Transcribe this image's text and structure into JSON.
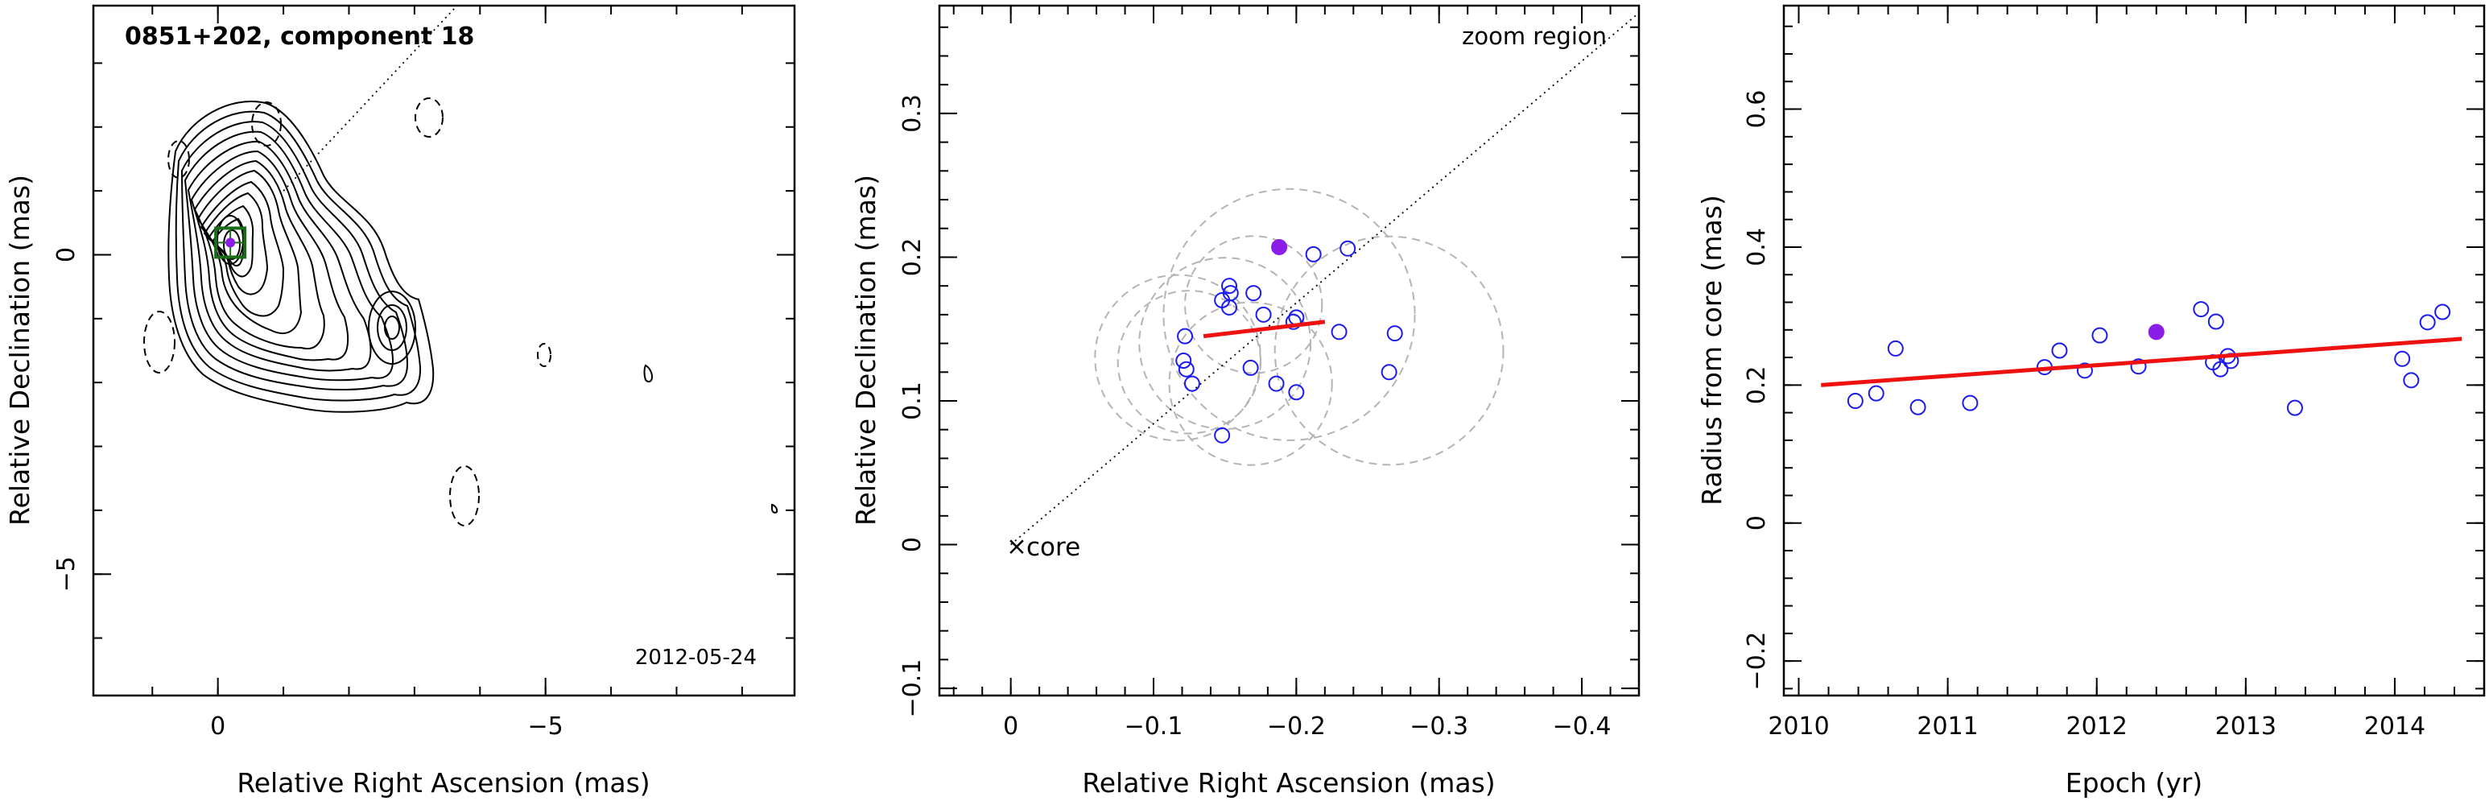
{
  "chart_data": [
    {
      "type": "contour",
      "panel": "map",
      "title": "0851+202, component 18",
      "date_label": "2012-05-24",
      "xlabel": "Relative Right Ascension (mas)",
      "ylabel": "Relative Declination (mas)",
      "xlim": [
        1.9,
        -8.8
      ],
      "ylim": [
        -6.9,
        3.9
      ],
      "xticks": [
        0,
        -5
      ],
      "yticks": [
        -5,
        0
      ],
      "xtick_labels": [
        "0",
        "−5"
      ],
      "ytick_labels": [
        "−5",
        "0"
      ],
      "core_position": [
        0,
        0
      ],
      "component_position": [
        -0.19,
        0.19
      ],
      "colors": {
        "contour": "#000000",
        "box": "#1a6b1a",
        "component": "#8a1ee8",
        "fit": "#ef1010"
      }
    },
    {
      "type": "scatter",
      "panel": "zoom",
      "annotation": "zoom region",
      "core_label": "core",
      "xlabel": "Relative Right Ascension (mas)",
      "ylabel": "Relative Declination (mas)",
      "xlim": [
        0.05,
        -0.44
      ],
      "ylim": [
        -0.105,
        0.375
      ],
      "xticks": [
        0,
        -0.1,
        -0.2,
        -0.3,
        -0.4
      ],
      "yticks": [
        -0.1,
        0,
        0.1,
        0.2,
        0.3
      ],
      "xtick_labels": [
        "0",
        "−0.1",
        "−0.2",
        "−0.3",
        "−0.4"
      ],
      "ytick_labels": [
        "−0.1",
        "0",
        "0.1",
        "0.2",
        "0.3"
      ],
      "points": [
        {
          "x": -0.122,
          "y": 0.145
        },
        {
          "x": -0.121,
          "y": 0.128
        },
        {
          "x": -0.123,
          "y": 0.122
        },
        {
          "x": -0.127,
          "y": 0.112
        },
        {
          "x": -0.148,
          "y": 0.17
        },
        {
          "x": -0.153,
          "y": 0.18
        },
        {
          "x": -0.154,
          "y": 0.175
        },
        {
          "x": -0.153,
          "y": 0.165
        },
        {
          "x": -0.17,
          "y": 0.175
        },
        {
          "x": -0.177,
          "y": 0.16
        },
        {
          "x": -0.168,
          "y": 0.123
        },
        {
          "x": -0.186,
          "y": 0.112
        },
        {
          "x": -0.2,
          "y": 0.158
        },
        {
          "x": -0.198,
          "y": 0.155
        },
        {
          "x": -0.2,
          "y": 0.106
        },
        {
          "x": -0.212,
          "y": 0.202
        },
        {
          "x": -0.23,
          "y": 0.148
        },
        {
          "x": -0.236,
          "y": 0.206
        },
        {
          "x": -0.265,
          "y": 0.12
        },
        {
          "x": -0.269,
          "y": 0.147
        },
        {
          "x": -0.148,
          "y": 0.076
        }
      ],
      "highlight": {
        "x": -0.188,
        "y": 0.207
      },
      "uncertainty_circles": [
        {
          "x": -0.117,
          "y": 0.13,
          "r": 0.058
        },
        {
          "x": -0.125,
          "y": 0.127,
          "r": 0.05
        },
        {
          "x": -0.15,
          "y": 0.14,
          "r": 0.06
        },
        {
          "x": -0.168,
          "y": 0.112,
          "r": 0.057
        },
        {
          "x": -0.17,
          "y": 0.167,
          "r": 0.048
        },
        {
          "x": -0.195,
          "y": 0.16,
          "r": 0.088
        },
        {
          "x": -0.265,
          "y": 0.135,
          "r": 0.08
        }
      ],
      "fit": {
        "x": [
          -0.135,
          -0.22
        ],
        "y": [
          0.145,
          0.155
        ]
      },
      "guide_line": {
        "x": [
          0,
          -0.44
        ],
        "y": [
          0,
          0.37
        ]
      }
    },
    {
      "type": "scatter",
      "panel": "radius",
      "xlabel": "Epoch (yr)",
      "ylabel": "Radius from core (mas)",
      "xlim": [
        2009.9,
        2014.6
      ],
      "ylim": [
        -0.25,
        0.75
      ],
      "xticks": [
        2010,
        2011,
        2012,
        2013,
        2014
      ],
      "yticks": [
        -0.2,
        0,
        0.2,
        0.4,
        0.6
      ],
      "xtick_labels": [
        "2010",
        "2011",
        "2012",
        "2013",
        "2014"
      ],
      "ytick_labels": [
        "−0.2",
        "0",
        "0.2",
        "0.4",
        "0.6"
      ],
      "points": [
        {
          "x": 2010.38,
          "y": 0.177
        },
        {
          "x": 2010.52,
          "y": 0.188
        },
        {
          "x": 2010.65,
          "y": 0.253
        },
        {
          "x": 2010.8,
          "y": 0.168
        },
        {
          "x": 2011.15,
          "y": 0.174
        },
        {
          "x": 2011.65,
          "y": 0.226
        },
        {
          "x": 2011.75,
          "y": 0.25
        },
        {
          "x": 2011.92,
          "y": 0.221
        },
        {
          "x": 2012.02,
          "y": 0.272
        },
        {
          "x": 2012.28,
          "y": 0.227
        },
        {
          "x": 2012.7,
          "y": 0.31
        },
        {
          "x": 2012.78,
          "y": 0.233
        },
        {
          "x": 2012.8,
          "y": 0.292
        },
        {
          "x": 2012.83,
          "y": 0.223
        },
        {
          "x": 2012.88,
          "y": 0.242
        },
        {
          "x": 2012.9,
          "y": 0.235
        },
        {
          "x": 2013.33,
          "y": 0.167
        },
        {
          "x": 2014.05,
          "y": 0.238
        },
        {
          "x": 2014.11,
          "y": 0.207
        },
        {
          "x": 2014.22,
          "y": 0.291
        },
        {
          "x": 2014.32,
          "y": 0.306
        }
      ],
      "highlight": {
        "x": 2012.4,
        "y": 0.277
      },
      "fit": {
        "x": [
          2010.15,
          2014.45
        ],
        "y": [
          0.2,
          0.267
        ]
      }
    }
  ]
}
